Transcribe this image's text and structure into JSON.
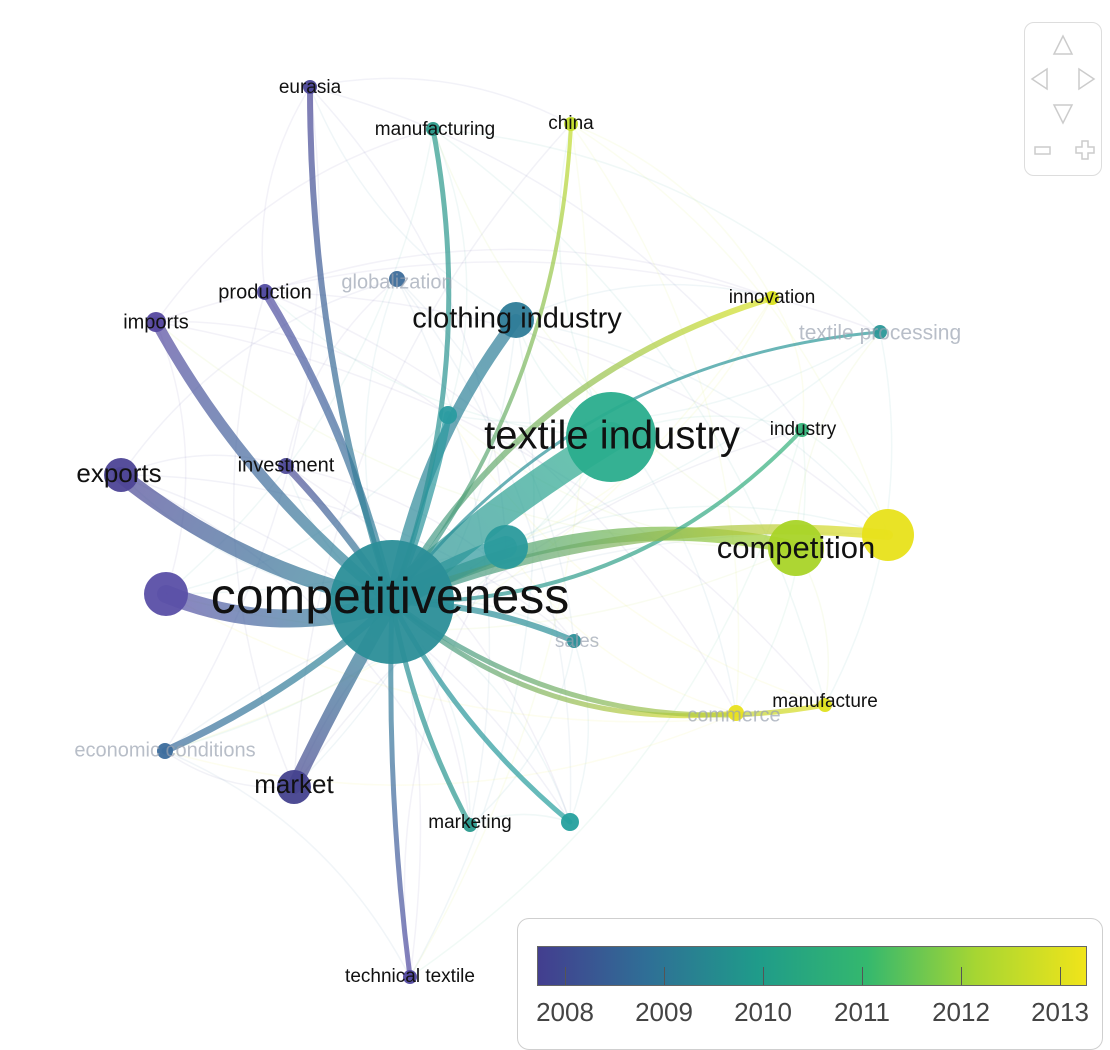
{
  "colors": {
    "2008": "#433e8f",
    "2009": "#2f6f96",
    "2010": "#1f9b8a",
    "2011": "#34b86e",
    "2012": "#a7d632",
    "2013": "#f0e41a"
  },
  "nodes": [
    {
      "id": "competitiveness",
      "label": "competitiveness",
      "color": "#2b8e98",
      "label_faded": false,
      "size": "xl"
    },
    {
      "id": "textile-industry",
      "label": "textile industry",
      "color": "#2aad8d",
      "label_faded": false,
      "size": "l"
    },
    {
      "id": "competition",
      "label": "competition",
      "color": "#a9d428",
      "label_faded": false,
      "size": "m"
    },
    {
      "id": "clothing-industry",
      "label": "clothing industry",
      "color": "#2e7c98",
      "label_faded": false,
      "size": "m"
    },
    {
      "id": "exports",
      "label": "exports",
      "color": "#4d4596",
      "label_faded": false,
      "size": "m"
    },
    {
      "id": "market",
      "label": "market",
      "color": "#45428e",
      "label_faded": false,
      "size": "m"
    },
    {
      "id": "imports",
      "label": "imports",
      "color": "#55489f",
      "label_faded": false,
      "size": "s"
    },
    {
      "id": "production",
      "label": "production",
      "color": "#514ba0",
      "label_faded": false,
      "size": "s"
    },
    {
      "id": "investment",
      "label": "investment",
      "color": "#4f4b98",
      "label_faded": false,
      "size": "s"
    },
    {
      "id": "eurasia",
      "label": "eurasia",
      "color": "#4a4496",
      "label_faded": false,
      "size": "s"
    },
    {
      "id": "manufacturing",
      "label": "manufacturing",
      "color": "#2b9a8a",
      "label_faded": false,
      "size": "s"
    },
    {
      "id": "china",
      "label": "china",
      "color": "#c4dd2a",
      "label_faded": false,
      "size": "s"
    },
    {
      "id": "globalization",
      "label": "globalization",
      "color": "#3d6d9a",
      "label_faded": true,
      "size": "s"
    },
    {
      "id": "innovation",
      "label": "innovation",
      "color": "#d9e21e",
      "label_faded": false,
      "size": "s"
    },
    {
      "id": "textile-processing",
      "label": "textile processing",
      "color": "#2a9898",
      "label_faded": true,
      "size": "s"
    },
    {
      "id": "industry",
      "label": "industry",
      "color": "#35b37a",
      "label_faded": false,
      "size": "s"
    },
    {
      "id": "sales",
      "label": "sales",
      "color": "#2b8f98",
      "label_faded": true,
      "size": "s"
    },
    {
      "id": "commerce",
      "label": "commerce",
      "color": "#e9e11d",
      "label_faded": true,
      "size": "s"
    },
    {
      "id": "manufacture",
      "label": "manufacture",
      "color": "#dfe01e",
      "label_faded": false,
      "size": "s"
    },
    {
      "id": "economic-conditions",
      "label": "economic conditions",
      "color": "#3b6b9c",
      "label_faded": true,
      "size": "s"
    },
    {
      "id": "marketing",
      "label": "marketing",
      "color": "#2a9a8e",
      "label_faded": false,
      "size": "s"
    },
    {
      "id": "technical-textile",
      "label": "technical textile",
      "color": "#5148a0",
      "label_faded": false,
      "size": "s"
    },
    {
      "id": "unlabeled-1",
      "label": "",
      "color": "#2a9ba0",
      "label_faded": false,
      "size": "s"
    },
    {
      "id": "unlabeled-2",
      "label": "",
      "color": "#2a9a9c",
      "label_faded": false,
      "size": "m"
    },
    {
      "id": "unlabeled-3",
      "label": "",
      "color": "#25a09e",
      "label_faded": false,
      "size": "s"
    },
    {
      "id": "unlabeled-4",
      "label": "",
      "color": "#e8e21a",
      "label_faded": false,
      "size": "m"
    },
    {
      "id": "unlabeled-5",
      "label": "",
      "color": "#5a4fa6",
      "label_faded": false,
      "size": "m"
    }
  ],
  "edges": [
    [
      "competitiveness",
      "textile-industry"
    ],
    [
      "competitiveness",
      "competition"
    ],
    [
      "competitiveness",
      "clothing-industry"
    ],
    [
      "competitiveness",
      "exports"
    ],
    [
      "competitiveness",
      "market"
    ],
    [
      "competitiveness",
      "imports"
    ],
    [
      "competitiveness",
      "production"
    ],
    [
      "competitiveness",
      "investment"
    ],
    [
      "competitiveness",
      "eurasia"
    ],
    [
      "competitiveness",
      "manufacturing"
    ],
    [
      "competitiveness",
      "china"
    ],
    [
      "competitiveness",
      "innovation"
    ],
    [
      "competitiveness",
      "textile-processing"
    ],
    [
      "competitiveness",
      "industry"
    ],
    [
      "competitiveness",
      "sales"
    ],
    [
      "competitiveness",
      "commerce"
    ],
    [
      "competitiveness",
      "manufacture"
    ],
    [
      "competitiveness",
      "economic-conditions"
    ],
    [
      "competitiveness",
      "marketing"
    ],
    [
      "competitiveness",
      "technical-textile"
    ],
    [
      "competitiveness",
      "unlabeled-1"
    ],
    [
      "competitiveness",
      "unlabeled-2"
    ],
    [
      "competitiveness",
      "unlabeled-3"
    ],
    [
      "competitiveness",
      "unlabeled-4"
    ],
    [
      "competitiveness",
      "unlabeled-5"
    ]
  ],
  "legend": {
    "ticks": [
      "2008",
      "2009",
      "2010",
      "2011",
      "2012",
      "2013"
    ],
    "gradient": [
      "#433e8f",
      "#2f6f96",
      "#1f9b8a",
      "#34b86e",
      "#a7d632",
      "#f0e41a"
    ]
  },
  "navigation": {
    "up_icon": "triangle-up-icon",
    "down_icon": "triangle-down-icon",
    "left_icon": "triangle-left-icon",
    "right_icon": "triangle-right-icon",
    "zoom_out_icon": "minus-icon",
    "zoom_in_icon": "plus-icon"
  }
}
